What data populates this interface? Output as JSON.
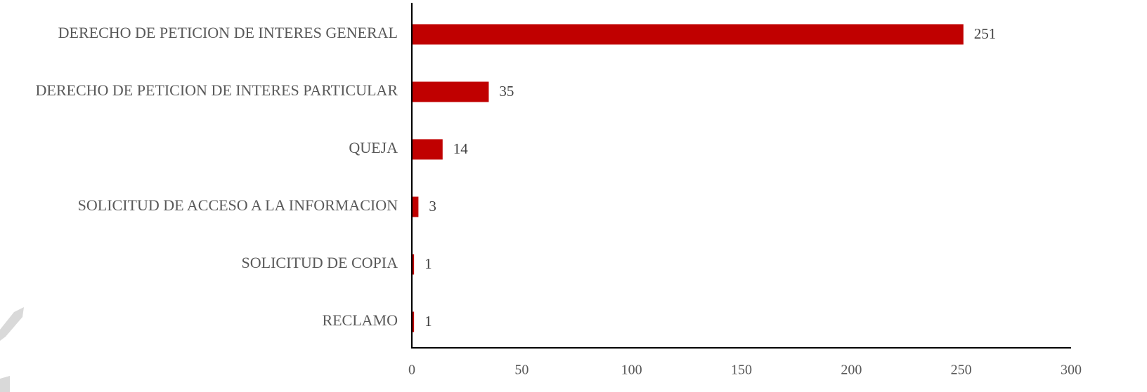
{
  "chart_data": {
    "type": "bar",
    "orientation": "horizontal",
    "categories": [
      "DERECHO DE PETICION DE INTERES GENERAL",
      "DERECHO DE PETICION DE INTERES PARTICULAR",
      "QUEJA",
      "SOLICITUD DE ACCESO A LA INFORMACION",
      "SOLICITUD DE COPIA",
      "RECLAMO"
    ],
    "values": [
      251,
      35,
      14,
      3,
      1,
      1
    ],
    "xlim": [
      0,
      300
    ],
    "xticks": [
      0,
      50,
      100,
      150,
      200,
      250,
      300
    ],
    "title": "",
    "xlabel": "",
    "ylabel": "",
    "grid": false,
    "legend": "none",
    "bar_color": "#c00000",
    "axis_color": "#000000"
  }
}
